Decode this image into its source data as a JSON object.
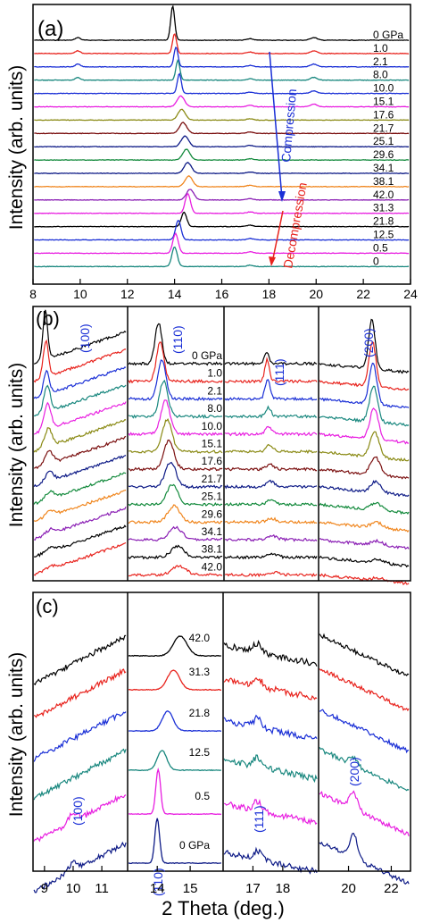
{
  "figure": {
    "xlabel": "2 Theta (deg.)",
    "colors": [
      "#000000",
      "#e8231d",
      "#1a2fd6",
      "#18877e",
      "#e81ee0",
      "#8a8a14",
      "#7b1010",
      "#0d1a86",
      "#138a3c",
      "#f0861e",
      "#8a1eb4"
    ]
  },
  "chart_data": [
    {
      "type": "line",
      "panel_label": "(a)",
      "ylabel": "Intensity (arb. units)",
      "xlim": [
        8,
        24
      ],
      "xticks": [
        8,
        10,
        12,
        14,
        16,
        18,
        20,
        22,
        24
      ],
      "series": [
        {
          "name": "0 GPa",
          "peak": 13.92,
          "color": "#000000"
        },
        {
          "name": "1.0",
          "peak": 14.0,
          "color": "#e8231d"
        },
        {
          "name": "2.1",
          "peak": 14.06,
          "color": "#1a2fd6"
        },
        {
          "name": "8.0",
          "peak": 14.14,
          "color": "#18877e"
        },
        {
          "name": "10.0",
          "peak": 14.2,
          "color": "#1a2fd6"
        },
        {
          "name": "15.1",
          "peak": 14.26,
          "color": "#e81ee0"
        },
        {
          "name": "17.6",
          "peak": 14.3,
          "color": "#8a8a14"
        },
        {
          "name": "21.7",
          "peak": 14.36,
          "color": "#7b1010"
        },
        {
          "name": "25.1",
          "peak": 14.44,
          "color": "#0d1a86"
        },
        {
          "name": "29.6",
          "peak": 14.5,
          "color": "#138a3c"
        },
        {
          "name": "34.1",
          "peak": 14.56,
          "color": "#0d1a86"
        },
        {
          "name": "38.1",
          "peak": 14.6,
          "color": "#f0861e"
        },
        {
          "name": "42.0",
          "peak": 14.66,
          "color": "#8a1eb4"
        },
        {
          "name": "31.3",
          "peak": 14.56,
          "color": "#e81ee0"
        },
        {
          "name": "21.8",
          "peak": 14.4,
          "color": "#000000"
        },
        {
          "name": "12.5",
          "peak": 14.16,
          "color": "#1a2fd6"
        },
        {
          "name": "0.5",
          "peak": 14.04,
          "color": "#e81ee0"
        },
        {
          "name": "0",
          "peak": 14.0,
          "color": "#18877e"
        }
      ],
      "annotations": [
        "Compression",
        "Decompression"
      ]
    },
    {
      "type": "line",
      "panel_label": "(b)",
      "ylabel": "Intensity (arb. units)",
      "subpanels": [
        {
          "label": "(100)",
          "xlim": [
            8.5,
            11.8
          ]
        },
        {
          "label": "(110)",
          "xlim": [
            12.6,
            16.4
          ]
        },
        {
          "label": "(111)",
          "xlim": [
            16.0,
            19.4
          ]
        },
        {
          "label": "(200)",
          "xlim": [
            18.6,
            22.6
          ]
        }
      ],
      "series_labels": [
        "0 GPa",
        "1.0",
        "2.1",
        "8.0",
        "10.0",
        "15.1",
        "17.6",
        "21.7",
        "25.1",
        "29.6",
        "34.1",
        "38.1",
        "42.0"
      ]
    },
    {
      "type": "line",
      "panel_label": "(c)",
      "ylabel": "Intensity (arb. units)",
      "subpanels": [
        {
          "label": "(100)",
          "xlim": [
            8.6,
            11.9
          ],
          "xticks": [
            9,
            10,
            11
          ]
        },
        {
          "label": "(110)",
          "xlim": [
            13.1,
            16.0
          ],
          "xticks": [
            14,
            15
          ]
        },
        {
          "label": "(111)",
          "xlim": [
            16.0,
            19.2
          ],
          "xticks": [
            17,
            18
          ]
        },
        {
          "label": "(200)",
          "xlim": [
            18.6,
            22.9
          ],
          "xticks": [
            20,
            22
          ]
        }
      ],
      "series_labels": [
        "42.0",
        "31.3",
        "21.8",
        "12.5",
        "0.5",
        "0 GPa"
      ]
    }
  ]
}
